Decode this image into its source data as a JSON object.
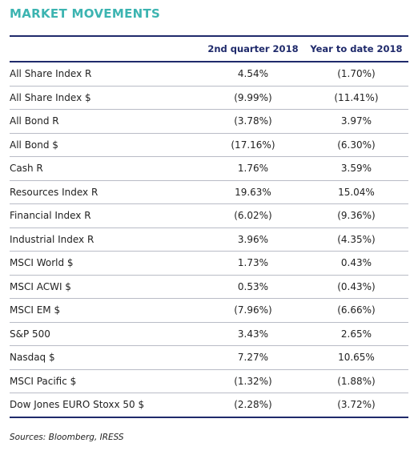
{
  "header": {
    "title": "MARKET MOVEMENTS"
  },
  "table": {
    "columns": [
      "2nd quarter 2018",
      "Year to date 2018"
    ],
    "rows": [
      [
        "All Share Index R",
        "4.54%",
        "(1.70%)"
      ],
      [
        "All Share Index $",
        "(9.99%)",
        "(11.41%)"
      ],
      [
        "All Bond R",
        "(3.78%)",
        "3.97%"
      ],
      [
        "All Bond $",
        "(17.16%)",
        "(6.30%)"
      ],
      [
        "Cash R",
        "1.76%",
        "3.59%"
      ],
      [
        "Resources Index R",
        "19.63%",
        "15.04%"
      ],
      [
        "Financial Index R",
        "(6.02%)",
        "(9.36%)"
      ],
      [
        "Industrial Index R",
        "3.96%",
        "(4.35%)"
      ],
      [
        "MSCI World $",
        "1.73%",
        "0.43%"
      ],
      [
        "MSCI ACWI $",
        "0.53%",
        "(0.43%)"
      ],
      [
        "MSCI EM $",
        "(7.96%)",
        "(6.66%)"
      ],
      [
        "S&P 500",
        "3.43%",
        "2.65%"
      ],
      [
        "Nasdaq $",
        "7.27%",
        "10.65%"
      ],
      [
        "MSCI Pacific $",
        "(1.32%)",
        "(1.88%)"
      ],
      [
        "Dow Jones EURO Stoxx 50 $",
        "(2.28%)",
        "(3.72%)"
      ]
    ]
  },
  "footer": {
    "source": "Sources: Bloomberg, IRESS"
  }
}
